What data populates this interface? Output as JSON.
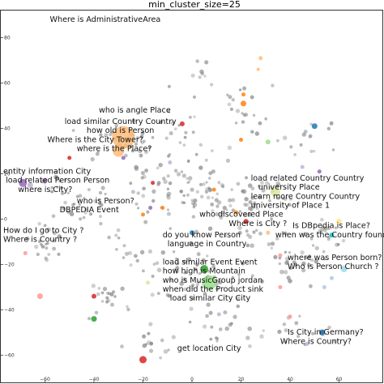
{
  "chart_data": {
    "type": "scatter",
    "title": "min_cluster_size=25",
    "xlabel": "",
    "ylabel": "",
    "xlim": [
      -78,
      78
    ],
    "ylim": [
      -72,
      92
    ],
    "x_ticks": [
      -60,
      -40,
      -20,
      0,
      20,
      40,
      60
    ],
    "y_ticks": [
      80,
      60,
      40,
      20,
      0,
      -20,
      -40,
      -60
    ],
    "x_tick_labels": [
      "−60",
      "−40",
      "−20",
      "0",
      "20",
      "40",
      "60"
    ],
    "y_tick_labels": [
      "80",
      "60",
      "40",
      "20",
      "0",
      "−20",
      "−40",
      "−60"
    ],
    "grid": false,
    "legend": "none",
    "noise_color": "#808080",
    "annotations": [
      {
        "text": "Where is AdministrativeArea",
        "x": -58,
        "y": 87
      },
      {
        "text": "who is angle Place",
        "x": -38,
        "y": 47
      },
      {
        "text": "load similar Country Country",
        "x": -52,
        "y": 42
      },
      {
        "text": "how old is Person",
        "x": -43,
        "y": 38
      },
      {
        "text": "Where is the City Tower?",
        "x": -59,
        "y": 34
      },
      {
        "text": "where is the Place?",
        "x": -47,
        "y": 30
      },
      {
        "text": "entity information City",
        "x": -77,
        "y": 20
      },
      {
        "text": "load related Person Person",
        "x": -76,
        "y": 16
      },
      {
        "text": "where is City?",
        "x": -71,
        "y": 12
      },
      {
        "text": "who is Person?",
        "x": -47,
        "y": 7
      },
      {
        "text": "DBPEDIA Event",
        "x": -54,
        "y": 3
      },
      {
        "text": "load related Country Country",
        "x": 24,
        "y": 17
      },
      {
        "text": "university Place",
        "x": 27,
        "y": 13
      },
      {
        "text": "learn more Country Country",
        "x": 24,
        "y": 9
      },
      {
        "text": "university of Place 1",
        "x": 24,
        "y": 5
      },
      {
        "text": "who discovered Place",
        "x": 3,
        "y": 1
      },
      {
        "text": "Where is City ?",
        "x": 15,
        "y": -3
      },
      {
        "text": "Is DBpedia is Place?",
        "x": 41,
        "y": -4
      },
      {
        "text": "when was the Country founded",
        "x": 34,
        "y": -8
      },
      {
        "text": "How do I go to City ?",
        "x": -77,
        "y": -6
      },
      {
        "text": "Where is Country ?",
        "x": -77,
        "y": -10
      },
      {
        "text": "do you know Person",
        "x": -12,
        "y": -8
      },
      {
        "text": "language in Country",
        "x": -10,
        "y": -12
      },
      {
        "text": "where was Person born?",
        "x": 39,
        "y": -18
      },
      {
        "text": "Who is Person Church ?",
        "x": 39,
        "y": -22
      },
      {
        "text": "load similar Event Event",
        "x": -12,
        "y": -20
      },
      {
        "text": "how high is Mountain",
        "x": -12,
        "y": -24
      },
      {
        "text": "who is MusicGroup jordan",
        "x": -12,
        "y": -28
      },
      {
        "text": "when did the Product sink",
        "x": -12,
        "y": -32
      },
      {
        "text": "load similar City City",
        "x": -9,
        "y": -36
      },
      {
        "text": "Is City in Germany?",
        "x": 39,
        "y": -51
      },
      {
        "text": "Where is Country?",
        "x": 36,
        "y": -55
      },
      {
        "text": "get location City",
        "x": -6,
        "y": -58
      }
    ],
    "clusters": [
      {
        "x": -28,
        "y": 36,
        "r": 14,
        "color": "#ffbb78"
      },
      {
        "x": -30,
        "y": 30,
        "r": 7,
        "color": "#ffbb78"
      },
      {
        "x": 7,
        "y": -28,
        "r": 9,
        "color": "#98df8a"
      },
      {
        "x": 5,
        "y": -22,
        "r": 5,
        "color": "#2ca02c"
      },
      {
        "x": 34,
        "y": 12,
        "r": 6,
        "color": "#d5e8a0"
      },
      {
        "x": -69,
        "y": 16,
        "r": 5,
        "color": "#9467bd"
      },
      {
        "x": -66,
        "y": 15,
        "r": 3.5,
        "color": "#c5b0d5"
      },
      {
        "x": -60,
        "y": 17,
        "r": 3,
        "color": "#9467bd"
      },
      {
        "x": -20,
        "y": -62,
        "r": 4.5,
        "color": "#d62728"
      },
      {
        "x": -40,
        "y": -44,
        "r": 3.5,
        "color": "#2ca02c"
      },
      {
        "x": -62,
        "y": -34,
        "r": 3.5,
        "color": "#ff9896"
      },
      {
        "x": -40,
        "y": -34,
        "r": 3,
        "color": "#d62728"
      },
      {
        "x": -68,
        "y": -15,
        "r": 2.5,
        "color": "#ff9896"
      },
      {
        "x": -4,
        "y": 42,
        "r": 3,
        "color": "#d62728"
      },
      {
        "x": 21,
        "y": 51,
        "r": 3.5,
        "color": "#ff7f0e"
      },
      {
        "x": 21,
        "y": 55,
        "r": 2.5,
        "color": "#ff7f0e"
      },
      {
        "x": 31,
        "y": 34,
        "r": 3,
        "color": "#98df8a"
      },
      {
        "x": 50,
        "y": 41,
        "r": 3.5,
        "color": "#1f77b4"
      },
      {
        "x": 20,
        "y": 35,
        "r": 2.5,
        "color": "#ff7f0e"
      },
      {
        "x": 9,
        "y": 13,
        "r": 2.5,
        "color": "#ff7f0e"
      },
      {
        "x": 18,
        "y": 3,
        "r": 2.5,
        "color": "#ff7f0e"
      },
      {
        "x": 22,
        "y": -1,
        "r": 3,
        "color": "#d62728"
      },
      {
        "x": 0,
        "y": -6,
        "r": 3,
        "color": "#1f77b4"
      },
      {
        "x": -17,
        "y": 5,
        "r": 2.5,
        "color": "#9467bd"
      },
      {
        "x": -24,
        "y": 12,
        "r": 2.5,
        "color": "#c5b0d5"
      },
      {
        "x": -16,
        "y": 16,
        "r": 2.5,
        "color": "#d62728"
      },
      {
        "x": -20,
        "y": 2,
        "r": 2.5,
        "color": "#ff7f0e"
      },
      {
        "x": -12,
        "y": 5,
        "r": 2.5,
        "color": "#ff7f0e"
      },
      {
        "x": -28,
        "y": 27,
        "r": 2.5,
        "color": "#9467bd"
      },
      {
        "x": -50,
        "y": 27,
        "r": 2.5,
        "color": "#d62728"
      },
      {
        "x": 60,
        "y": -1,
        "r": 3.5,
        "color": "#ffe88a"
      },
      {
        "x": 57,
        "y": -7,
        "r": 3,
        "color": "#17becf"
      },
      {
        "x": 62,
        "y": -22,
        "r": 4,
        "color": "#9edae5"
      },
      {
        "x": 57,
        "y": -26,
        "r": 2.5,
        "color": "#aec7e8"
      },
      {
        "x": 54,
        "y": -30,
        "r": 2.5,
        "color": "#aec7e8"
      },
      {
        "x": 53,
        "y": -50,
        "r": 3.5,
        "color": "#1f77b4"
      },
      {
        "x": 47,
        "y": -55,
        "r": 2.5,
        "color": "#c5b0d5"
      },
      {
        "x": 40,
        "y": -43,
        "r": 2.5,
        "color": "#ff9896"
      },
      {
        "x": 36,
        "y": -30,
        "r": 2.5,
        "color": "#ff9896"
      },
      {
        "x": 52,
        "y": 21,
        "r": 2.5,
        "color": "#9467bd"
      },
      {
        "x": 45,
        "y": 23,
        "r": 2.5,
        "color": "#c5b0d5"
      },
      {
        "x": 28,
        "y": 71,
        "r": 2.5,
        "color": "#ffbb78"
      },
      {
        "x": 27,
        "y": 66,
        "r": 2,
        "color": "#ffbb78"
      },
      {
        "x": 36,
        "y": -16,
        "r": 2.5,
        "color": "#ff9896"
      },
      {
        "x": 11,
        "y": -42,
        "r": 2.5,
        "color": "#c5b0d5"
      },
      {
        "x": -18,
        "y": -28,
        "r": 2.5,
        "color": "#d5e8a0"
      },
      {
        "x": 31,
        "y": -6,
        "r": 2.5,
        "color": "#ffbb78"
      },
      {
        "x": -9,
        "y": 25,
        "r": 2.5,
        "color": "#c5b0d5"
      }
    ]
  }
}
